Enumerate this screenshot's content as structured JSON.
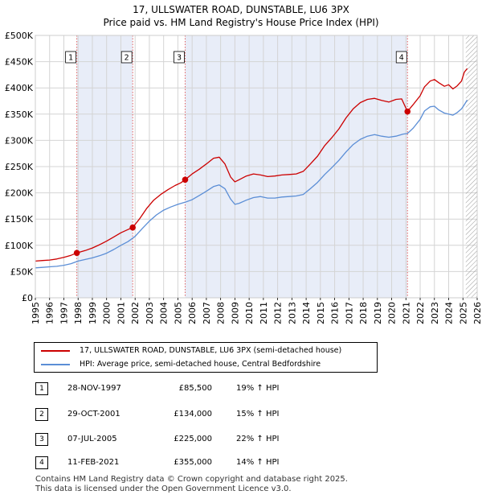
{
  "chart_data": {
    "type": "line",
    "title": "17, ULLSWATER ROAD, DUNSTABLE, LU6 3PX",
    "subtitle": "Price paid vs. HM Land Registry's House Price Index (HPI)",
    "xlim": [
      1995,
      2026
    ],
    "ylim": [
      0,
      500000
    ],
    "x_ticks": [
      "1995",
      "1996",
      "1997",
      "1998",
      "1999",
      "2000",
      "2001",
      "2002",
      "2003",
      "2004",
      "2005",
      "2006",
      "2007",
      "2008",
      "2009",
      "2010",
      "2011",
      "2012",
      "2013",
      "2014",
      "2015",
      "2016",
      "2017",
      "2018",
      "2019",
      "2020",
      "2021",
      "2022",
      "2023",
      "2024",
      "2025",
      "2026"
    ],
    "y_ticks": [
      {
        "value": 0,
        "label": "£0"
      },
      {
        "value": 50000,
        "label": "£50K"
      },
      {
        "value": 100000,
        "label": "£100K"
      },
      {
        "value": 150000,
        "label": "£150K"
      },
      {
        "value": 200000,
        "label": "£200K"
      },
      {
        "value": 250000,
        "label": "£250K"
      },
      {
        "value": 300000,
        "label": "£300K"
      },
      {
        "value": 350000,
        "label": "£350K"
      },
      {
        "value": 400000,
        "label": "£400K"
      },
      {
        "value": 450000,
        "label": "£450K"
      },
      {
        "value": 500000,
        "label": "£500K"
      }
    ],
    "grid": true,
    "series": [
      {
        "name": "17, ULLSWATER ROAD, DUNSTABLE, LU6 3PX (semi-detached house)",
        "color": "#cc0000",
        "x": [
          1995.0,
          1995.5,
          1996.0,
          1996.5,
          1997.0,
          1997.5,
          1997.91,
          1998.5,
          1999.0,
          1999.5,
          2000.0,
          2000.5,
          2001.0,
          2001.5,
          2001.83,
          2002.3,
          2002.8,
          2003.3,
          2003.8,
          2004.3,
          2004.8,
          2005.2,
          2005.51,
          2006.0,
          2006.5,
          2007.0,
          2007.5,
          2007.9,
          2008.3,
          2008.7,
          2009.0,
          2009.3,
          2009.8,
          2010.3,
          2010.8,
          2011.3,
          2011.8,
          2012.3,
          2012.8,
          2013.3,
          2013.8,
          2014.3,
          2014.8,
          2015.3,
          2015.8,
          2016.3,
          2016.8,
          2017.3,
          2017.8,
          2018.3,
          2018.8,
          2019.3,
          2019.8,
          2020.3,
          2020.7,
          2021.11,
          2021.5,
          2022.0,
          2022.3,
          2022.7,
          2023.0,
          2023.3,
          2023.7,
          2024.0,
          2024.3,
          2024.6,
          2024.9,
          2025.1,
          2025.3
        ],
        "values": [
          70000,
          71000,
          72000,
          74000,
          77000,
          81000,
          85500,
          90000,
          95000,
          101000,
          108000,
          116000,
          124000,
          130000,
          134000,
          150000,
          170000,
          186000,
          197000,
          206000,
          214000,
          219000,
          225000,
          236000,
          245000,
          255000,
          266000,
          268000,
          255000,
          230000,
          221000,
          225000,
          232000,
          236000,
          234000,
          231000,
          232000,
          234000,
          235000,
          236000,
          241000,
          255000,
          270000,
          290000,
          305000,
          322000,
          343000,
          360000,
          372000,
          378000,
          380000,
          376000,
          373000,
          378000,
          379000,
          355000,
          368000,
          385000,
          402000,
          413000,
          416000,
          410000,
          403000,
          406000,
          398000,
          404000,
          413000,
          430000,
          437000
        ]
      },
      {
        "name": "HPI: Average price, semi-detached house, Central Bedfordshire",
        "color": "#5b8ed6",
        "x": [
          1995.0,
          1995.5,
          1996.0,
          1996.5,
          1997.0,
          1997.5,
          1998.0,
          1998.5,
          1999.0,
          1999.5,
          2000.0,
          2000.5,
          2001.0,
          2001.5,
          2002.0,
          2002.5,
          2003.0,
          2003.5,
          2004.0,
          2004.5,
          2005.0,
          2005.5,
          2006.0,
          2006.5,
          2007.0,
          2007.5,
          2007.9,
          2008.3,
          2008.7,
          2009.0,
          2009.3,
          2009.8,
          2010.3,
          2010.8,
          2011.3,
          2011.8,
          2012.3,
          2012.8,
          2013.3,
          2013.8,
          2014.3,
          2014.8,
          2015.3,
          2015.8,
          2016.3,
          2016.8,
          2017.3,
          2017.8,
          2018.3,
          2018.8,
          2019.3,
          2019.8,
          2020.3,
          2020.8,
          2021.1,
          2021.5,
          2022.0,
          2022.3,
          2022.7,
          2023.0,
          2023.3,
          2023.7,
          2024.0,
          2024.3,
          2024.6,
          2024.9,
          2025.1,
          2025.3
        ],
        "values": [
          57000,
          58000,
          59000,
          60000,
          62000,
          65000,
          70000,
          73000,
          76000,
          80000,
          85000,
          92000,
          100000,
          107000,
          117000,
          132000,
          146000,
          158000,
          167000,
          173000,
          178000,
          182000,
          187000,
          195000,
          203000,
          212000,
          215000,
          208000,
          188000,
          178000,
          180000,
          186000,
          191000,
          193000,
          190000,
          190000,
          192000,
          193000,
          194000,
          197000,
          208000,
          220000,
          235000,
          248000,
          262000,
          278000,
          292000,
          302000,
          308000,
          311000,
          308000,
          306000,
          308000,
          312000,
          313000,
          323000,
          340000,
          356000,
          364000,
          365000,
          358000,
          352000,
          350000,
          348000,
          353000,
          360000,
          368000,
          377000
        ]
      }
    ],
    "sales": [
      {
        "num": "1",
        "x": 1997.91,
        "value": 85500
      },
      {
        "num": "2",
        "x": 2001.83,
        "value": 134000
      },
      {
        "num": "3",
        "x": 2005.51,
        "value": 225000
      },
      {
        "num": "4",
        "x": 2021.11,
        "value": 355000
      }
    ],
    "shaded_periods": [
      [
        1997.91,
        2001.83
      ],
      [
        2005.51,
        2021.11
      ]
    ],
    "hatch_from": 2025.2,
    "legend_position": "below"
  },
  "legend": {
    "item1": "17, ULLSWATER ROAD, DUNSTABLE, LU6 3PX (semi-detached house)",
    "item2": "HPI: Average price, semi-detached house, Central Bedfordshire"
  },
  "sales_table": [
    {
      "num": "1",
      "date": "28-NOV-1997",
      "price": "£85,500",
      "hpi": "19% ↑ HPI"
    },
    {
      "num": "2",
      "date": "29-OCT-2001",
      "price": "£134,000",
      "hpi": "15% ↑ HPI"
    },
    {
      "num": "3",
      "date": "07-JUL-2005",
      "price": "£225,000",
      "hpi": "22% ↑ HPI"
    },
    {
      "num": "4",
      "date": "11-FEB-2021",
      "price": "£355,000",
      "hpi": "14% ↑ HPI"
    }
  ],
  "footer": {
    "line1": "Contains HM Land Registry data © Crown copyright and database right 2025.",
    "line2": "This data is licensed under the Open Government Licence v3.0."
  }
}
